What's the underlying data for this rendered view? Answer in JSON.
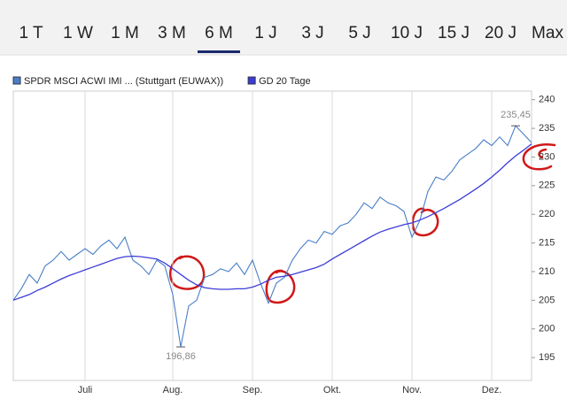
{
  "tabs": [
    "1 T",
    "1 W",
    "1 M",
    "3 M",
    "6 M",
    "1 J",
    "3 J",
    "5 J",
    "10 J",
    "15 J",
    "20 J",
    "Max"
  ],
  "active_tab": "6 M",
  "chart_data": {
    "type": "line",
    "categories": [
      null,
      null,
      null,
      null,
      null,
      null,
      null,
      null,
      null,
      "Juli",
      null,
      null,
      null,
      null,
      null,
      null,
      null,
      null,
      null,
      null,
      "Aug.",
      null,
      null,
      null,
      null,
      null,
      null,
      null,
      null,
      null,
      "Sep.",
      null,
      null,
      null,
      null,
      null,
      null,
      null,
      null,
      null,
      "Okt.",
      null,
      null,
      null,
      null,
      null,
      null,
      null,
      null,
      null,
      "Nov.",
      null,
      null,
      null,
      null,
      null,
      null,
      null,
      null,
      null,
      "Dez.",
      null,
      null,
      null,
      null,
      null
    ],
    "series": [
      {
        "name": "SPDR MSCI ACWI IMI ... (Stuttgart (EUWAX))",
        "color": "#4a7fc8",
        "values": [
          205,
          207,
          209.5,
          208,
          211,
          212,
          213.5,
          212,
          213,
          214,
          213,
          214.5,
          215.5,
          214,
          216,
          212,
          211,
          209.5,
          212,
          211,
          206,
          196.86,
          204,
          205,
          209,
          209.5,
          210.5,
          210,
          211.5,
          209.5,
          212,
          208,
          204.5,
          208,
          209,
          212,
          214,
          215.5,
          215,
          217,
          216.5,
          218,
          218.5,
          220,
          222,
          221,
          223,
          222,
          221.5,
          220.5,
          216,
          219,
          224,
          226.5,
          226,
          227.5,
          229.5,
          230.5,
          231.5,
          233,
          232,
          233.5,
          232,
          235.45,
          234,
          232.5
        ],
        "value_labels": [
          null,
          null,
          null,
          null,
          null,
          null,
          null,
          null,
          null,
          null,
          null,
          null,
          null,
          null,
          null,
          null,
          null,
          null,
          null,
          null,
          null,
          "196,86",
          null,
          null,
          null,
          null,
          null,
          null,
          null,
          null,
          null,
          null,
          null,
          null,
          null,
          null,
          null,
          null,
          null,
          null,
          null,
          null,
          null,
          null,
          null,
          null,
          null,
          null,
          null,
          null,
          null,
          null,
          null,
          null,
          null,
          null,
          null,
          null,
          null,
          null,
          null,
          null,
          null,
          "235,45",
          null,
          null
        ]
      },
      {
        "name": "GD 20 Tage",
        "color": "#3c3cd8",
        "values": [
          205,
          205.5,
          206,
          206.7,
          207.3,
          208,
          208.7,
          209.3,
          209.8,
          210.3,
          210.8,
          211.3,
          211.8,
          212.3,
          212.6,
          212.7,
          212.6,
          212.4,
          212.2,
          211.5,
          210.5,
          209.5,
          208.5,
          207.7,
          207.2,
          207,
          206.9,
          206.9,
          207,
          207,
          207.3,
          207.8,
          208.5,
          209,
          209.2,
          209.5,
          209.9,
          210.3,
          210.7,
          211.3,
          212.2,
          213,
          213.8,
          214.6,
          215.4,
          216.2,
          216.9,
          217.4,
          217.8,
          218.2,
          218.5,
          219,
          219.6,
          220.3,
          221,
          221.8,
          222.6,
          223.5,
          224.4,
          225.4,
          226.5,
          227.7,
          229,
          230.2,
          231.2,
          232.3
        ]
      }
    ],
    "ylim": [
      191,
      241.5
    ],
    "yticks": [
      195,
      200,
      205,
      210,
      215,
      220,
      225,
      230,
      235,
      240
    ],
    "grid": true
  }
}
